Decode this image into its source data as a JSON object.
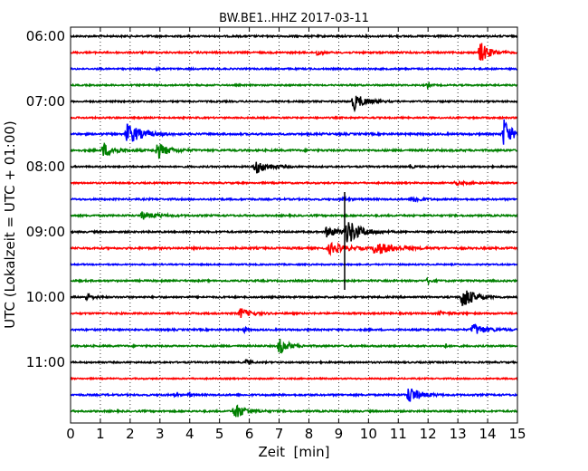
{
  "chart_data": {
    "type": "line",
    "title": "BW.BE1..HHZ 2017-03-11",
    "xlabel": "Zeit  [min]",
    "ylabel": "UTC (Lokalzeit = UTC + 01:00)",
    "xlim": [
      0,
      15
    ],
    "x_ticks": [
      "0",
      "1",
      "2",
      "3",
      "4",
      "5",
      "6",
      "7",
      "8",
      "9",
      "10",
      "11",
      "12",
      "13",
      "14",
      "15"
    ],
    "y_tick_labels": [
      "06:00",
      "07:00",
      "08:00",
      "09:00",
      "10:00",
      "11:00"
    ],
    "grid": "vertical dotted at each minute",
    "trace_interval_minutes": 15,
    "trace_colors": [
      "#000000",
      "#ff0000",
      "#0000ff",
      "#008000"
    ],
    "series": [
      {
        "start": "06:00",
        "noise": 0.9,
        "events": []
      },
      {
        "start": "06:15",
        "noise": 0.9,
        "events": [
          {
            "t": 8.3,
            "amp": 4,
            "dur": 0.15
          },
          {
            "t": 13.75,
            "amp": 12,
            "dur": 0.5
          }
        ]
      },
      {
        "start": "06:30",
        "noise": 0.8,
        "events": [
          {
            "t": 2.9,
            "amp": 2,
            "dur": 0.1
          }
        ]
      },
      {
        "start": "06:45",
        "noise": 0.8,
        "events": [
          {
            "t": 12.0,
            "amp": 3,
            "dur": 0.1
          }
        ]
      },
      {
        "start": "07:00",
        "noise": 0.8,
        "events": [
          {
            "t": 9.5,
            "amp": 10,
            "dur": 0.6
          }
        ]
      },
      {
        "start": "07:15",
        "noise": 0.8,
        "events": []
      },
      {
        "start": "07:30",
        "noise": 1.0,
        "events": [
          {
            "t": 1.9,
            "amp": 12,
            "dur": 0.8
          },
          {
            "t": 14.55,
            "amp": 18,
            "dur": 0.4
          }
        ]
      },
      {
        "start": "07:45",
        "noise": 1.0,
        "events": [
          {
            "t": 1.1,
            "amp": 8,
            "dur": 0.6
          },
          {
            "t": 2.9,
            "amp": 9,
            "dur": 0.6
          }
        ]
      },
      {
        "start": "08:00",
        "noise": 0.8,
        "events": [
          {
            "t": 6.2,
            "amp": 8,
            "dur": 0.7
          },
          {
            "t": 11.4,
            "amp": 2,
            "dur": 0.2
          }
        ]
      },
      {
        "start": "08:15",
        "noise": 0.8,
        "events": [
          {
            "t": 12.9,
            "amp": 2,
            "dur": 0.6
          }
        ]
      },
      {
        "start": "08:30",
        "noise": 0.9,
        "events": [
          {
            "t": 9.1,
            "amp": 2,
            "dur": 0.3
          },
          {
            "t": 11.5,
            "amp": 4,
            "dur": 0.4
          }
        ]
      },
      {
        "start": "08:45",
        "noise": 0.9,
        "events": [
          {
            "t": 2.4,
            "amp": 4,
            "dur": 0.8
          }
        ]
      },
      {
        "start": "09:00",
        "noise": 0.9,
        "events": [
          {
            "t": 8.6,
            "amp": 6,
            "dur": 0.7
          },
          {
            "t": 9.3,
            "amp": 14,
            "dur": 0.7
          }
        ]
      },
      {
        "start": "09:15",
        "noise": 1.0,
        "events": [
          {
            "t": 8.7,
            "amp": 6,
            "dur": 0.9
          },
          {
            "t": 10.2,
            "amp": 7,
            "dur": 1.1
          }
        ]
      },
      {
        "start": "09:30",
        "noise": 0.7,
        "events": []
      },
      {
        "start": "09:45",
        "noise": 0.9,
        "events": [
          {
            "t": 12.0,
            "amp": 3,
            "dur": 0.2
          }
        ]
      },
      {
        "start": "10:00",
        "noise": 0.9,
        "events": [
          {
            "t": 0.55,
            "amp": 5,
            "dur": 0.3
          },
          {
            "t": 13.15,
            "amp": 14,
            "dur": 0.6
          }
        ]
      },
      {
        "start": "10:15",
        "noise": 0.9,
        "events": [
          {
            "t": 5.7,
            "amp": 6,
            "dur": 0.5
          },
          {
            "t": 12.4,
            "amp": 2,
            "dur": 0.5
          }
        ]
      },
      {
        "start": "10:30",
        "noise": 0.9,
        "events": [
          {
            "t": 5.85,
            "amp": 3,
            "dur": 0.1
          },
          {
            "t": 13.5,
            "amp": 7,
            "dur": 0.7
          }
        ]
      },
      {
        "start": "10:45",
        "noise": 0.9,
        "events": [
          {
            "t": 7.0,
            "amp": 9,
            "dur": 0.5
          },
          {
            "t": 12.6,
            "amp": 2,
            "dur": 0.1
          }
        ]
      },
      {
        "start": "11:00",
        "noise": 0.8,
        "events": [
          {
            "t": 5.9,
            "amp": 3,
            "dur": 0.2
          }
        ]
      },
      {
        "start": "11:15",
        "noise": 0.7,
        "events": []
      },
      {
        "start": "11:30",
        "noise": 0.9,
        "events": [
          {
            "t": 3.5,
            "amp": 3,
            "dur": 0.1
          },
          {
            "t": 4.0,
            "amp": 3,
            "dur": 0.1
          },
          {
            "t": 11.35,
            "amp": 10,
            "dur": 0.6
          }
        ]
      },
      {
        "start": "11:45",
        "noise": 0.9,
        "events": [
          {
            "t": 5.5,
            "amp": 9,
            "dur": 0.6
          }
        ]
      }
    ],
    "spike": {
      "start": "09:00",
      "t": 9.2,
      "from_start": "08:30",
      "to_start": "09:45"
    }
  }
}
